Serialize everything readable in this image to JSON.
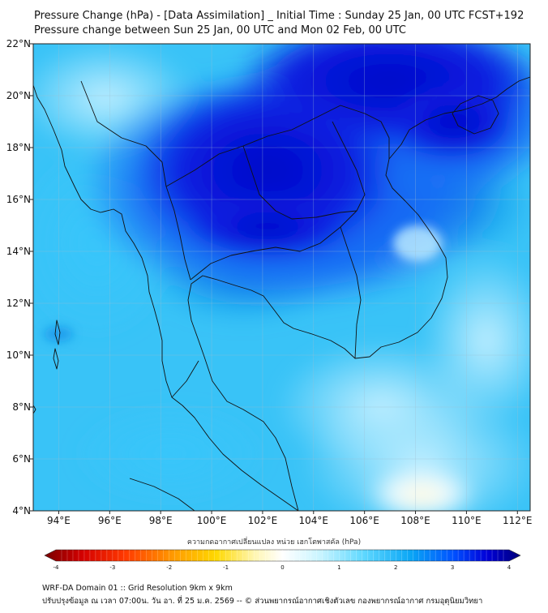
{
  "title_line1": "Pressure Change (hPa) - [Data Assimilation] _ Initial Time : Sunday 25 Jan, 00 UTC FCST+192",
  "title_line2": "Pressure change between Sun 25 Jan, 00 UTC and Mon 02 Feb, 00 UTC",
  "map": {
    "lon_range": [
      93,
      112.5
    ],
    "lat_range": [
      4,
      22
    ],
    "x_ticks": [
      {
        "lon": 94,
        "label": "94°E"
      },
      {
        "lon": 96,
        "label": "96°E"
      },
      {
        "lon": 98,
        "label": "98°E"
      },
      {
        "lon": 100,
        "label": "100°E"
      },
      {
        "lon": 102,
        "label": "102°E"
      },
      {
        "lon": 104,
        "label": "104°E"
      },
      {
        "lon": 106,
        "label": "106°E"
      },
      {
        "lon": 108,
        "label": "108°E"
      },
      {
        "lon": 110,
        "label": "110°E"
      },
      {
        "lon": 112,
        "label": "112°E"
      }
    ],
    "y_ticks": [
      {
        "lat": 4,
        "label": "4°N"
      },
      {
        "lat": 6,
        "label": "6°N"
      },
      {
        "lat": 8,
        "label": "8°N"
      },
      {
        "lat": 10,
        "label": "10°N"
      },
      {
        "lat": 12,
        "label": "12°N"
      },
      {
        "lat": 14,
        "label": "14°N"
      },
      {
        "lat": 16,
        "label": "16°N"
      },
      {
        "lat": 18,
        "label": "18°N"
      },
      {
        "lat": 20,
        "label": "20°N"
      },
      {
        "lat": 22,
        "label": "22°N"
      }
    ]
  },
  "colorbar": {
    "label": "ความกดอากาศเปลี่ยนแปลง หน่วย เฮกโตพาสคัล (hPa)",
    "min": -4,
    "max": 4,
    "ticks": [
      "-4",
      "-3",
      "-2",
      "-1",
      "0",
      "1",
      "2",
      "3",
      "4"
    ],
    "colors": [
      "#7a0000",
      "#d40000",
      "#ff3a00",
      "#ff9a00",
      "#ffd800",
      "#fff6b0",
      "#ffffff",
      "#c8f4ff",
      "#5fd8ff",
      "#0aa6f5",
      "#0050ff",
      "#0000d8",
      "#00007a"
    ]
  },
  "footer_line1": "WRF-DA Domain 01 :: Grid Resolution 9km x 9km",
  "footer_line2": "ปรับปรุงข้อมูล ณ เวลา 07:00น. วัน อา. ที่ 25 ม.ค. 2569 -- © ส่วนพยากรณ์อากาศเชิงตัวเลข กองพยากรณ์อากาศ กรมอุตุนิยมวิทยา"
}
